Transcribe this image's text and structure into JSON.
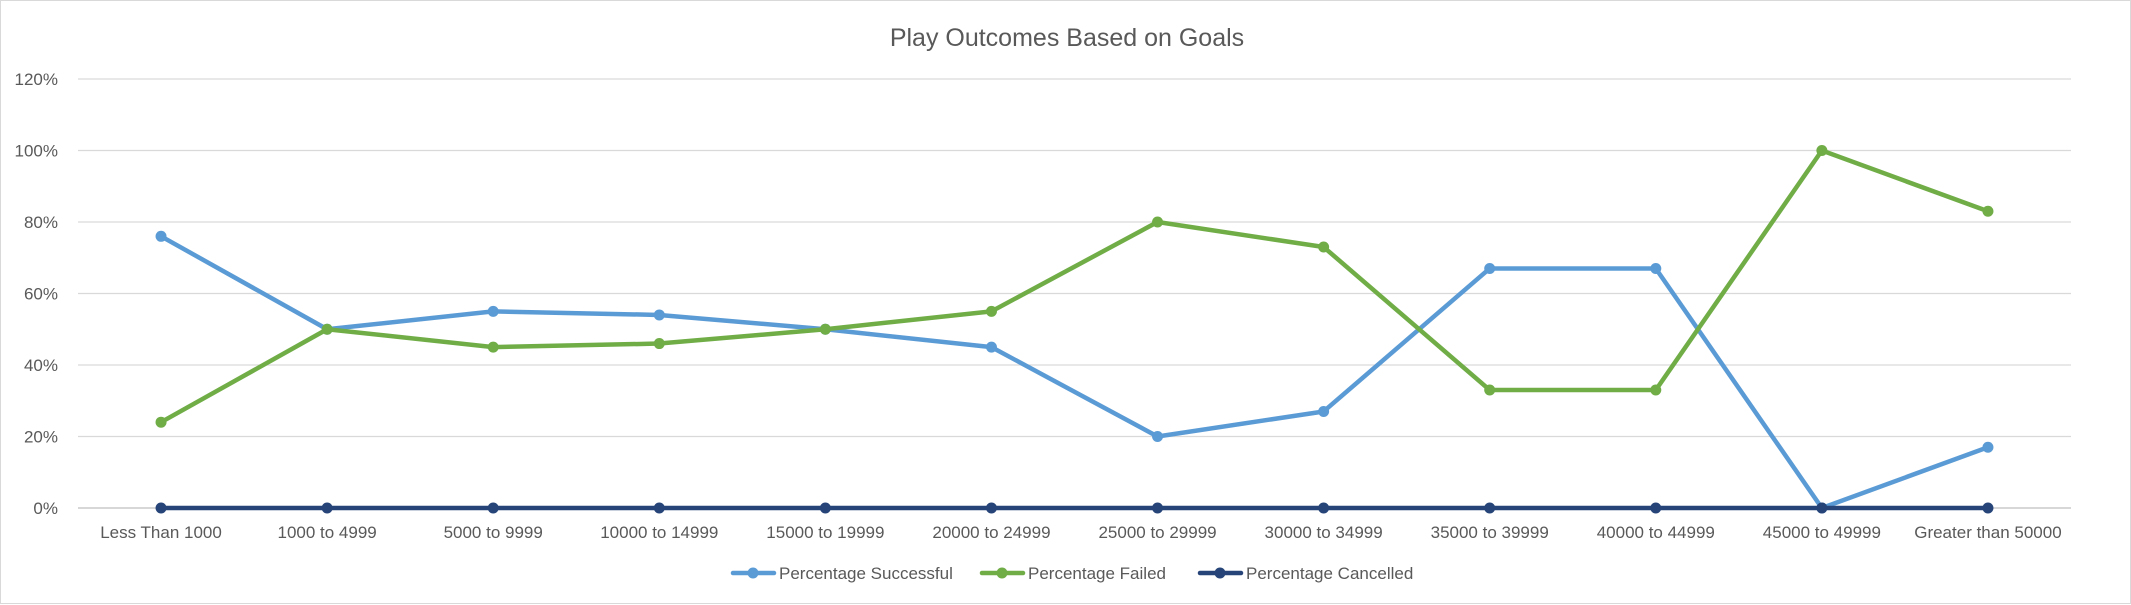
{
  "chart_data": {
    "type": "line",
    "title": "Play Outcomes Based on Goals",
    "xlabel": "",
    "ylabel": "",
    "categories": [
      "Less Than 1000",
      "1000 to 4999",
      "5000 to 9999",
      "10000 to 14999",
      "15000 to 19999",
      "20000 to 24999",
      "25000 to 29999",
      "30000 to 34999",
      "35000 to 39999",
      "40000 to 44999",
      "45000 to 49999",
      "Greater than 50000"
    ],
    "ylim": [
      0,
      1.2
    ],
    "y_ticks": [
      0,
      0.2,
      0.4,
      0.6,
      0.8,
      1.0,
      1.2
    ],
    "y_tick_labels": [
      "0%",
      "20%",
      "40%",
      "60%",
      "80%",
      "100%",
      "120%"
    ],
    "grid": true,
    "legend_position": "bottom",
    "series": [
      {
        "name": "Percentage Successful",
        "color": "#5b9bd5",
        "values": [
          0.76,
          0.5,
          0.55,
          0.54,
          0.5,
          0.45,
          0.2,
          0.27,
          0.67,
          0.67,
          0.0,
          0.17
        ]
      },
      {
        "name": "Percentage Failed",
        "color": "#70ad47",
        "values": [
          0.24,
          0.5,
          0.45,
          0.46,
          0.5,
          0.55,
          0.8,
          0.73,
          0.33,
          0.33,
          1.0,
          0.83
        ]
      },
      {
        "name": "Percentage Cancelled",
        "color": "#264478",
        "values": [
          0,
          0,
          0,
          0,
          0,
          0,
          0,
          0,
          0,
          0,
          0,
          0
        ]
      }
    ]
  }
}
